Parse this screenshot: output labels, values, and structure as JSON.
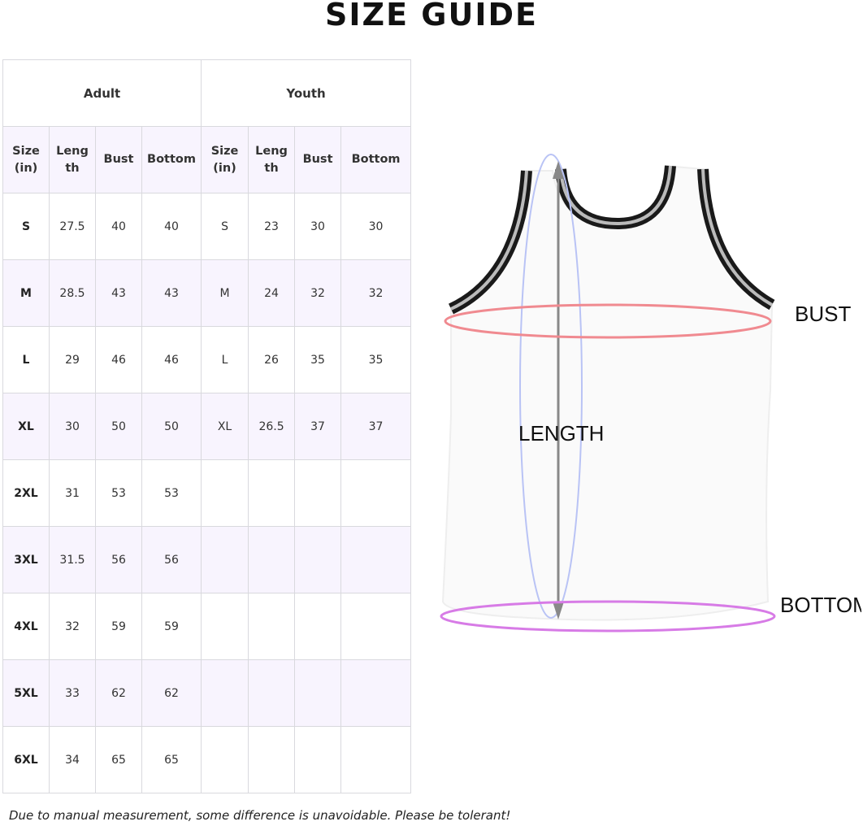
{
  "title": "SIZE GUIDE",
  "table": {
    "groups": [
      "Adult",
      "Youth"
    ],
    "headers": [
      "Size (in)",
      "Leng th",
      "Bust",
      "Bottom",
      "Size (in)",
      "Leng th",
      "Bust",
      "Bottom"
    ],
    "rows": [
      [
        "S",
        "27.5",
        "40",
        "40",
        "S",
        "23",
        "30",
        "30"
      ],
      [
        "M",
        "28.5",
        "43",
        "43",
        "M",
        "24",
        "32",
        "32"
      ],
      [
        "L",
        "29",
        "46",
        "46",
        "L",
        "26",
        "35",
        "35"
      ],
      [
        "XL",
        "30",
        "50",
        "50",
        "XL",
        "26.5",
        "37",
        "37"
      ],
      [
        "2XL",
        "31",
        "53",
        "53",
        "",
        "",
        "",
        ""
      ],
      [
        "3XL",
        "31.5",
        "56",
        "56",
        "",
        "",
        "",
        ""
      ],
      [
        "4XL",
        "32",
        "59",
        "59",
        "",
        "",
        "",
        ""
      ],
      [
        "5XL",
        "33",
        "62",
        "62",
        "",
        "",
        "",
        ""
      ],
      [
        "6XL",
        "34",
        "65",
        "65",
        "",
        "",
        "",
        ""
      ]
    ]
  },
  "diagram": {
    "labels": {
      "bust": "BUST",
      "length": "LENGTH",
      "bottom": "BOTTOM"
    },
    "colors": {
      "bust": "#f08a90",
      "bottom": "#d77be6",
      "length_arc": "#b9c3f5",
      "arrow": "#888888",
      "trim": "#1a1a1a"
    }
  },
  "note": "Due to manual measurement, some difference is unavoidable. Please be tolerant!"
}
